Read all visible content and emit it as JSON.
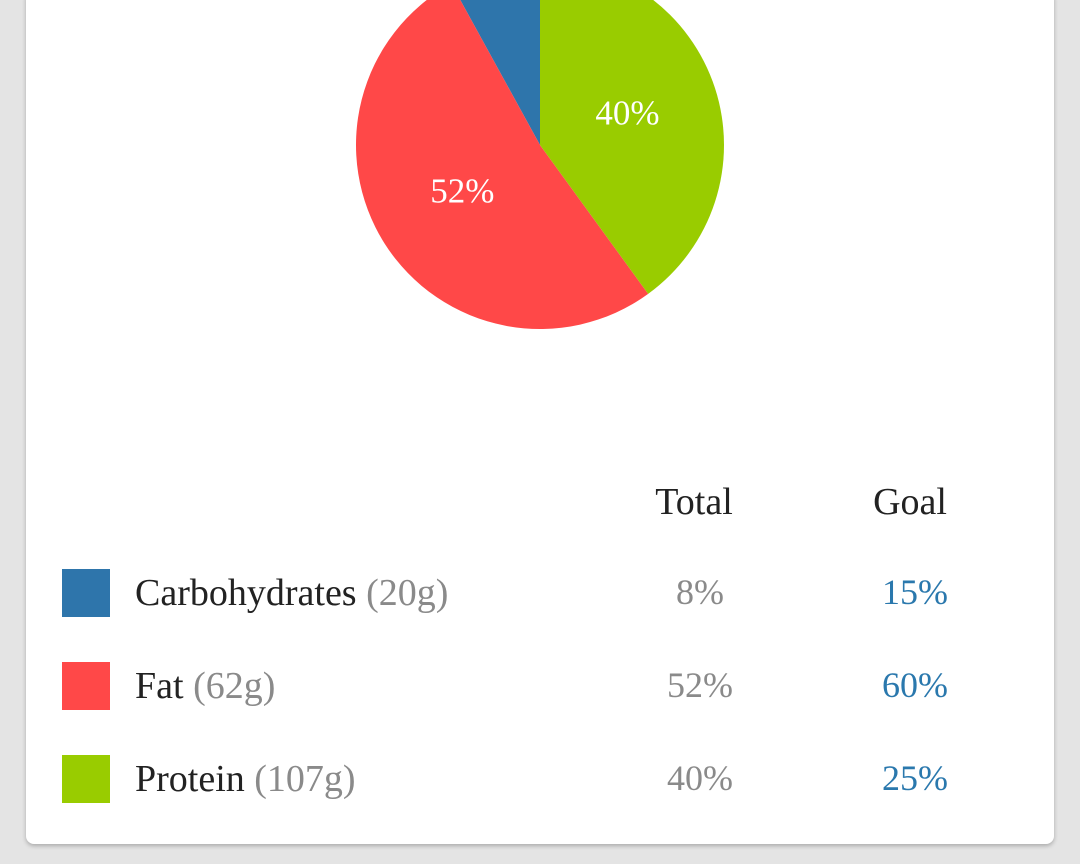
{
  "chart_data": {
    "type": "pie",
    "categories": [
      "Carbohydrates",
      "Fat",
      "Protein"
    ],
    "values": [
      8,
      52,
      40
    ],
    "value_labels": [
      null,
      "52%",
      "40%"
    ],
    "colors": [
      "#2e75ab",
      "#ff4848",
      "#99cc00"
    ]
  },
  "table": {
    "header": [
      "Total",
      "Goal"
    ],
    "rows": [
      {
        "name": "Carbohydrates",
        "grams": "(20g)",
        "total": "8%",
        "goal": "15%"
      },
      {
        "name": "Fat",
        "grams": "(62g)",
        "total": "52%",
        "goal": "60%"
      },
      {
        "name": "Protein",
        "grams": "(107g)",
        "total": "40%",
        "goal": "25%"
      }
    ]
  }
}
